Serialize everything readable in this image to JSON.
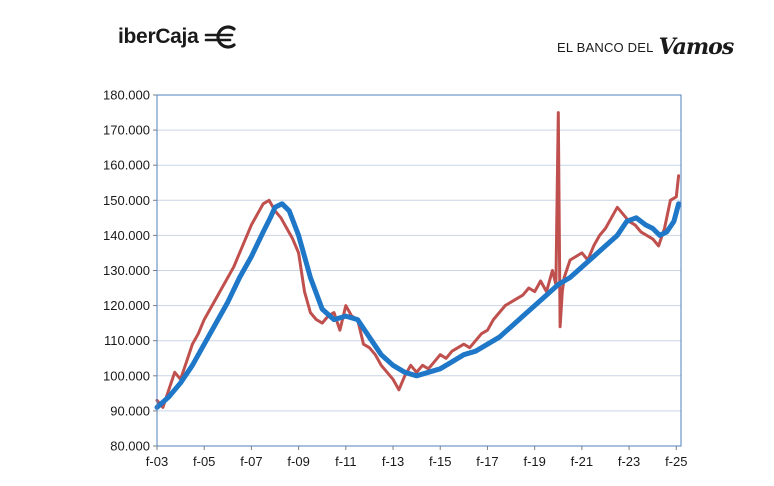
{
  "header": {
    "logo_left_text": "iberCaja",
    "logo_left_icon": "euro-swoosh-icon",
    "logo_right_text": "EL BANCO DEL",
    "logo_right_script": "Vamos"
  },
  "colors": {
    "monthly_series": "#c0504d",
    "trend_series": "#1f77c8",
    "plot_border": "#4f81bd",
    "grid": "#c9d5e6"
  },
  "chart_data": {
    "type": "line",
    "title": "",
    "xlabel": "",
    "ylabel": "",
    "ylim": [
      80000,
      180000
    ],
    "yticks": [
      80000,
      90000,
      100000,
      110000,
      120000,
      130000,
      140000,
      150000,
      160000,
      170000,
      180000
    ],
    "ytick_labels": [
      "80.000",
      "90.000",
      "100.000",
      "110.000",
      "120.000",
      "130.000",
      "140.000",
      "150.000",
      "160.000",
      "170.000",
      "180.000"
    ],
    "xlim": [
      2003.0,
      2025.2
    ],
    "xticks": [
      2003,
      2005,
      2007,
      2009,
      2011,
      2013,
      2015,
      2017,
      2019,
      2021,
      2023,
      2025
    ],
    "xtick_labels": [
      "f-03",
      "f-05",
      "f-07",
      "f-09",
      "f-11",
      "f-13",
      "f-15",
      "f-17",
      "f-19",
      "f-21",
      "f-23",
      "f-25"
    ],
    "grid": "horizontal",
    "legend": "none",
    "series": [
      {
        "x": [
          2003.0,
          2003.25,
          2003.5,
          2003.75,
          2004.0,
          2004.25,
          2004.5,
          2004.75,
          2005.0,
          2005.25,
          2005.5,
          2005.75,
          2006.0,
          2006.25,
          2006.5,
          2006.75,
          2007.0,
          2007.25,
          2007.5,
          2007.75,
          2008.0,
          2008.25,
          2008.5,
          2008.75,
          2009.0,
          2009.25,
          2009.5,
          2009.75,
          2010.0,
          2010.25,
          2010.5,
          2010.75,
          2011.0,
          2011.25,
          2011.5,
          2011.75,
          2012.0,
          2012.25,
          2012.5,
          2012.75,
          2013.0,
          2013.25,
          2013.5,
          2013.75,
          2014.0,
          2014.25,
          2014.5,
          2014.75,
          2015.0,
          2015.25,
          2015.5,
          2015.75,
          2016.0,
          2016.25,
          2016.5,
          2016.75,
          2017.0,
          2017.25,
          2017.5,
          2017.75,
          2018.0,
          2018.25,
          2018.5,
          2018.75,
          2019.0,
          2019.25,
          2019.5,
          2019.75,
          2019.9,
          2020.0,
          2020.08,
          2020.17,
          2020.25,
          2020.5,
          2020.75,
          2021.0,
          2021.25,
          2021.5,
          2021.75,
          2022.0,
          2022.25,
          2022.5,
          2022.75,
          2023.0,
          2023.25,
          2023.5,
          2023.75,
          2024.0,
          2024.25,
          2024.5,
          2024.75,
          2025.0,
          2025.1
        ],
        "values": [
          93000,
          91000,
          96000,
          101000,
          99000,
          104000,
          109000,
          112000,
          116000,
          119000,
          122000,
          125000,
          128000,
          131000,
          135000,
          139000,
          143000,
          146000,
          149000,
          150000,
          147000,
          145000,
          142000,
          139000,
          135000,
          124000,
          118000,
          116000,
          115000,
          117000,
          118000,
          113000,
          120000,
          117000,
          116000,
          109000,
          108000,
          106000,
          103000,
          101000,
          99000,
          96000,
          100000,
          103000,
          101000,
          103000,
          102000,
          104000,
          106000,
          105000,
          107000,
          108000,
          109000,
          108000,
          110000,
          112000,
          113000,
          116000,
          118000,
          120000,
          121000,
          122000,
          123000,
          125000,
          124000,
          127000,
          124000,
          130000,
          126000,
          175000,
          114000,
          124000,
          128000,
          133000,
          134000,
          135000,
          133000,
          137000,
          140000,
          142000,
          145000,
          148000,
          146000,
          144000,
          143000,
          141000,
          140000,
          139000,
          137000,
          142000,
          150000,
          151000,
          157000
        ]
      },
      {
        "x": [
          2003.0,
          2003.5,
          2004.0,
          2004.5,
          2005.0,
          2005.5,
          2006.0,
          2006.5,
          2007.0,
          2007.5,
          2007.8,
          2008.0,
          2008.3,
          2008.6,
          2009.0,
          2009.5,
          2010.0,
          2010.5,
          2011.0,
          2011.5,
          2012.0,
          2012.5,
          2013.0,
          2013.5,
          2014.0,
          2014.5,
          2015.0,
          2015.5,
          2016.0,
          2016.5,
          2017.0,
          2017.5,
          2018.0,
          2018.5,
          2019.0,
          2019.5,
          2020.0,
          2020.5,
          2021.0,
          2021.5,
          2022.0,
          2022.5,
          2022.9,
          2023.3,
          2023.7,
          2024.0,
          2024.3,
          2024.6,
          2024.9,
          2025.1
        ],
        "values": [
          91000,
          94000,
          98000,
          103000,
          109000,
          115000,
          121000,
          128000,
          134000,
          141000,
          145000,
          148000,
          149000,
          147000,
          140000,
          128000,
          119000,
          116000,
          117000,
          116000,
          111000,
          106000,
          103000,
          101000,
          100000,
          101000,
          102000,
          104000,
          106000,
          107000,
          109000,
          111000,
          114000,
          117000,
          120000,
          123000,
          126000,
          128000,
          131000,
          134000,
          137000,
          140000,
          144000,
          145000,
          143000,
          142000,
          140000,
          141000,
          144000,
          149000
        ]
      }
    ]
  }
}
